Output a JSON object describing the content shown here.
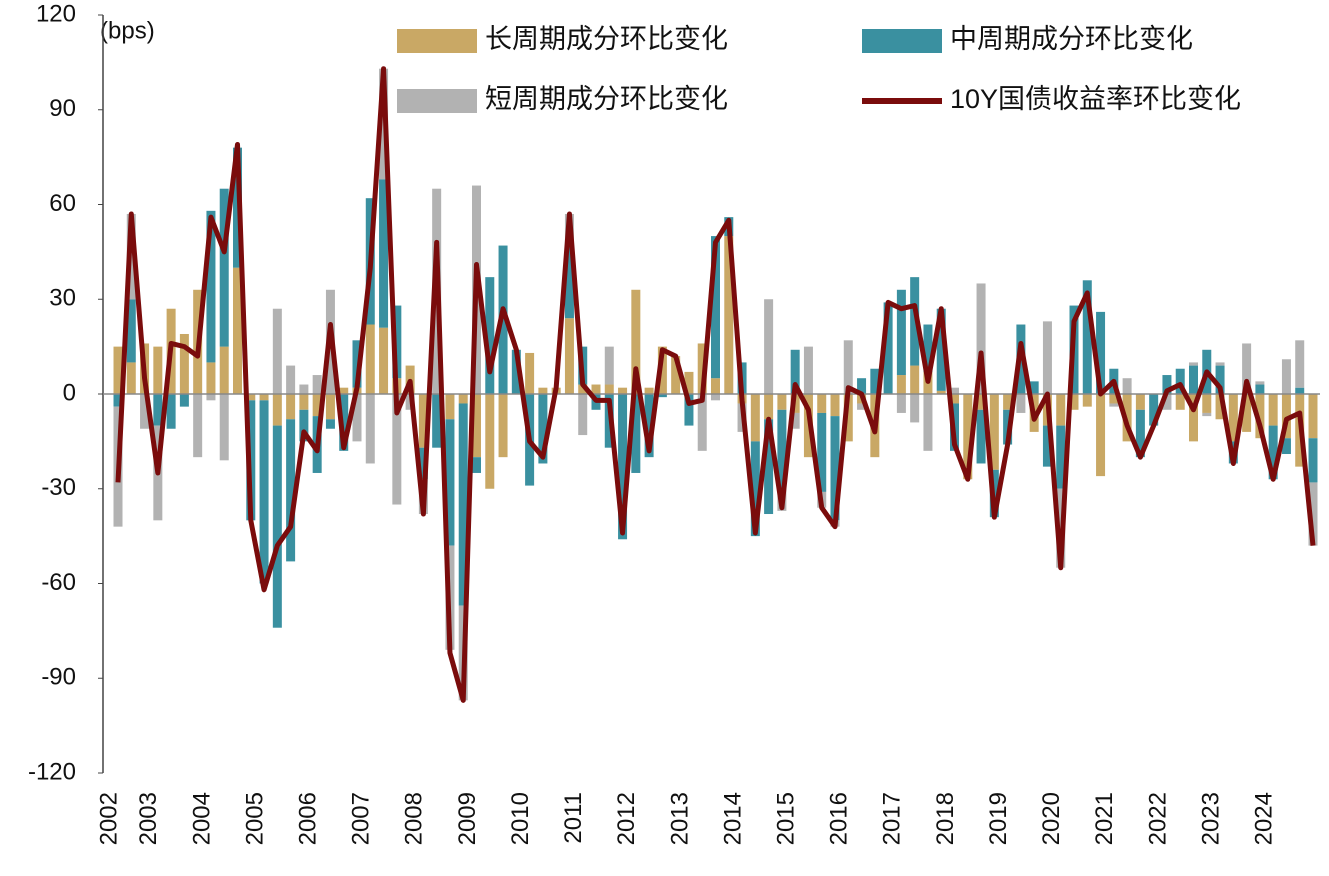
{
  "chart_data": {
    "type": "bar",
    "stacked": true,
    "y_label": "(bps)",
    "categories": [
      "2002",
      null,
      null,
      "2003",
      null,
      null,
      null,
      "2004",
      null,
      null,
      null,
      "2005",
      null,
      null,
      null,
      "2006",
      null,
      null,
      null,
      "2007",
      null,
      null,
      null,
      "2008",
      null,
      null,
      null,
      "2009",
      null,
      null,
      null,
      "2010",
      null,
      null,
      null,
      "2011",
      null,
      null,
      null,
      "2012",
      null,
      null,
      null,
      "2013",
      null,
      null,
      null,
      "2014",
      null,
      null,
      null,
      "2015",
      null,
      null,
      null,
      "2016",
      null,
      null,
      null,
      "2017",
      null,
      null,
      null,
      "2018",
      null,
      null,
      null,
      "2019",
      null,
      null,
      null,
      "2020",
      null,
      null,
      null,
      "2021",
      null,
      null,
      null,
      "2022",
      null,
      null,
      null,
      "2023",
      null,
      null,
      null,
      "2024",
      null,
      null,
      null
    ],
    "series": [
      {
        "name": "长周期成分环比变化",
        "type": "bar",
        "color": "#c9a865",
        "values": [
          15,
          10,
          16,
          15,
          27,
          19,
          33,
          10,
          15,
          40,
          -2,
          -2,
          -10,
          -8,
          -5,
          -7,
          -8,
          2,
          2,
          22,
          21,
          5,
          9,
          -17,
          0,
          -8,
          -3,
          -20,
          -30,
          -20,
          0,
          13,
          2,
          2,
          24,
          3,
          3,
          3,
          2,
          33,
          2,
          15,
          12,
          7,
          16,
          5,
          50,
          -3,
          -15,
          -8,
          -5,
          -6,
          -20,
          -6,
          -7,
          -15,
          -3,
          -20,
          0,
          6,
          9,
          7,
          1,
          -3,
          -27,
          -5,
          -24,
          -5,
          0,
          -12,
          -10,
          -10,
          -5,
          -4,
          -26,
          -3,
          -15,
          -5,
          0,
          0,
          -5,
          -15,
          -6,
          -8,
          -15,
          -12,
          -14,
          -10,
          -14,
          -23,
          -14
        ]
      },
      {
        "name": "中周期成分环比变化",
        "type": "bar",
        "color": "#3a90a0",
        "values": [
          -4,
          20,
          0,
          -10,
          -11,
          -4,
          0,
          48,
          50,
          38,
          -38,
          -58,
          -64,
          -45,
          -10,
          -18,
          -3,
          -18,
          15,
          40,
          47,
          23,
          0,
          -10,
          -17,
          -40,
          -64,
          -5,
          37,
          47,
          14,
          -29,
          -22,
          0,
          25,
          12,
          -5,
          -17,
          -46,
          -25,
          -20,
          -1,
          0,
          -10,
          0,
          45,
          6,
          10,
          -30,
          -30,
          -25,
          14,
          0,
          -25,
          -33,
          0,
          5,
          8,
          29,
          27,
          28,
          15,
          26,
          -15,
          0,
          -17,
          -15,
          -11,
          22,
          4,
          -13,
          -20,
          28,
          36,
          26,
          8,
          0,
          -15,
          -10,
          6,
          8,
          9,
          14,
          9,
          -7,
          0,
          3,
          -17,
          -5,
          2,
          -14
        ]
      },
      {
        "name": "短周期成分环比变化",
        "type": "bar",
        "color": "#b2b2b2",
        "values": [
          -38,
          27,
          -11,
          -30,
          0,
          0,
          -20,
          -2,
          -21,
          0,
          0,
          0,
          27,
          9,
          3,
          6,
          33,
          0,
          -15,
          -22,
          35,
          -35,
          -5,
          -11,
          65,
          -33,
          -30,
          66,
          0,
          0,
          0,
          0,
          0,
          0,
          8,
          -13,
          0,
          12,
          0,
          0,
          0,
          0,
          0,
          0,
          -18,
          -2,
          0,
          -9,
          0,
          30,
          -7,
          -5,
          15,
          -5,
          -2,
          17,
          -2,
          0,
          0,
          -6,
          -9,
          -18,
          0,
          2,
          0,
          35,
          0,
          0,
          -6,
          0,
          23,
          -25,
          0,
          0,
          0,
          -1,
          5,
          0,
          0,
          -5,
          0,
          1,
          -1,
          1,
          0,
          16,
          1,
          0,
          11,
          15,
          -20
        ]
      },
      {
        "name": "10Y国债收益率环比变化",
        "type": "line",
        "color": "#7a0c0c",
        "values": [
          -28,
          57,
          5,
          -25,
          16,
          15,
          12,
          56,
          45,
          79,
          -40,
          -62,
          -48,
          -42,
          -12,
          -18,
          22,
          -17,
          2,
          40,
          103,
          -6,
          4,
          -38,
          48,
          -82,
          -97,
          41,
          7,
          27,
          14,
          -15,
          -20,
          2,
          57,
          3,
          -2,
          -2,
          -44,
          8,
          -18,
          14,
          12,
          -3,
          -2,
          48,
          55,
          -2,
          -44,
          -8,
          -36,
          3,
          -5,
          -36,
          -42,
          2,
          0,
          -12,
          29,
          27,
          28,
          4,
          27,
          -16,
          -27,
          13,
          -39,
          -16,
          16,
          -8,
          0,
          -55,
          23,
          32,
          0,
          4,
          -10,
          -20,
          -10,
          1,
          3,
          -5,
          7,
          2,
          -22,
          4,
          -10,
          -27,
          -8,
          -6,
          -48
        ]
      }
    ],
    "ylim": [
      -120,
      120
    ],
    "yticks": [
      -120,
      -90,
      -60,
      -30,
      0,
      30,
      60,
      90,
      120
    ],
    "legend": "top"
  }
}
